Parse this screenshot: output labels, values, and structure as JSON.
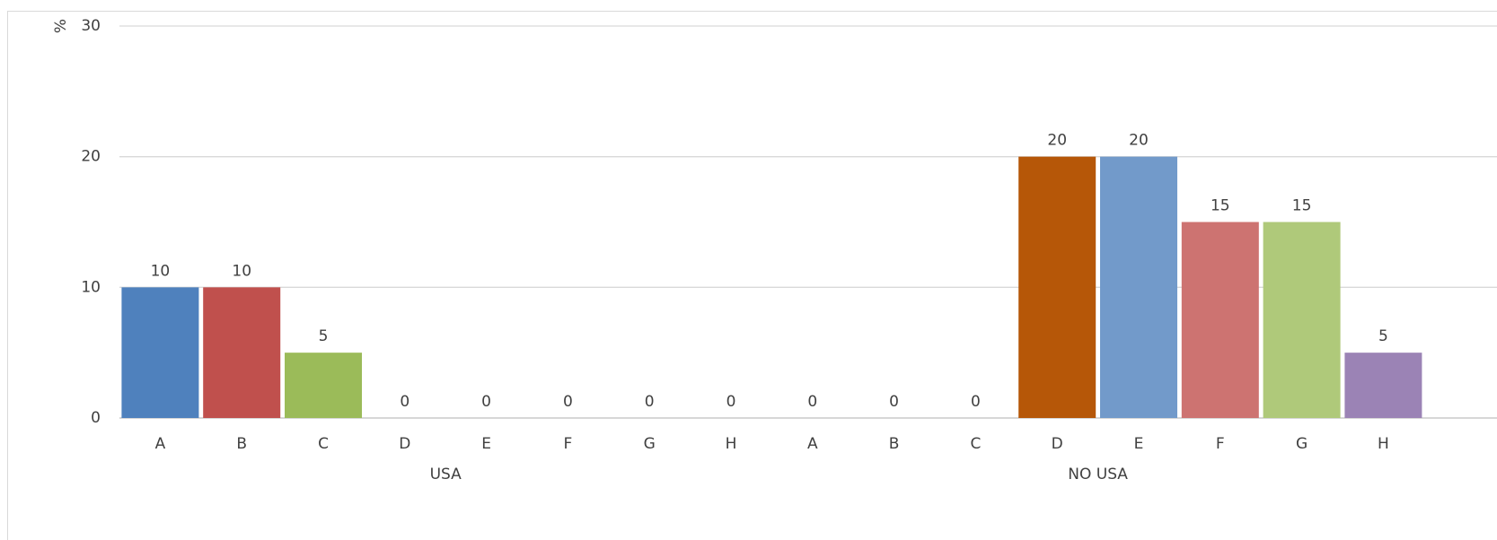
{
  "chart_data": {
    "type": "bar",
    "ylabel": "%",
    "ylim": [
      0,
      30
    ],
    "yticks": [
      "0",
      "10",
      "20",
      "30"
    ],
    "groups": [
      {
        "label": "USA",
        "categories": [
          "A",
          "B",
          "C",
          "D",
          "E",
          "F",
          "G",
          "H"
        ],
        "values": [
          10,
          10,
          5,
          0,
          0,
          0,
          0,
          0
        ]
      },
      {
        "label": "NO USA",
        "categories": [
          "A",
          "B",
          "C",
          "D",
          "E",
          "F",
          "G",
          "H"
        ],
        "values": [
          0,
          0,
          0,
          20,
          20,
          15,
          15,
          5
        ]
      }
    ],
    "bar_colors": [
      "#4f81bd",
      "#c0504d",
      "#9bbb59",
      "#8064a2",
      "#4bacc6",
      "#f79646",
      "#2c4d75",
      "#772c2a",
      "#5f7530",
      "#4d3b62",
      "#276a7c",
      "#b65708",
      "#729aca",
      "#cd7371",
      "#afc97a",
      "#9b83b5"
    ],
    "grid": true,
    "data_labels": true
  }
}
